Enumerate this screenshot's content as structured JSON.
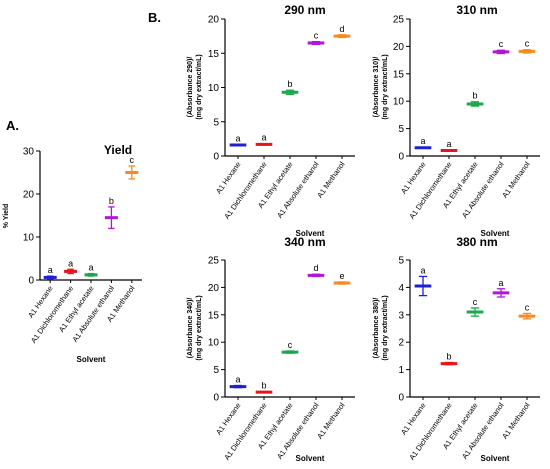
{
  "panel_labels": {
    "a": "A.",
    "b": "B."
  },
  "chart_data": [
    {
      "id": "yield",
      "type": "scatter",
      "title": "Yield",
      "ylabel": "% Yield",
      "xlabel": "Solvent",
      "ylim": [
        0,
        30
      ],
      "yticks": [
        0,
        10,
        20,
        30
      ],
      "categories": [
        "A1 Hexane",
        "A1 Dichloromethane",
        "A1 Ethyl acetate",
        "A1 Absolute ethanol",
        "A1 Methanol"
      ],
      "values": [
        0.6,
        2.0,
        1.2,
        14.5,
        25.0
      ],
      "errors": [
        0.3,
        0.5,
        0.3,
        2.5,
        1.5
      ],
      "letters": [
        "a",
        "a",
        "a",
        "b",
        "c"
      ],
      "colors": [
        "#1f1fd1",
        "#e8141c",
        "#19a84a",
        "#b016d8",
        "#f7891e"
      ]
    },
    {
      "id": "nm290",
      "type": "scatter",
      "title": "290 nm",
      "ylabel": "(Absorbance 290)/ (mg dry extract/mL)",
      "xlabel": "Solvent",
      "ylim": [
        0,
        20
      ],
      "yticks": [
        0,
        5,
        10,
        15,
        20
      ],
      "categories": [
        "A1 Hexane",
        "A1 Dichloromethane",
        "A1 Ethyl acetate",
        "A1 Absolute ethanol",
        "A1 Methanol"
      ],
      "values": [
        1.6,
        1.7,
        9.3,
        16.5,
        17.5
      ],
      "errors": [
        0.1,
        0.1,
        0.3,
        0.2,
        0.2
      ],
      "letters": [
        "a",
        "a",
        "b",
        "c",
        "d"
      ],
      "colors": [
        "#1f1fd1",
        "#e8141c",
        "#19a84a",
        "#b016d8",
        "#f7891e"
      ]
    },
    {
      "id": "nm310",
      "type": "scatter",
      "title": "310 nm",
      "ylabel": "(Absorbance 310)/ (mg dry extract/mL)",
      "xlabel": "Solvent",
      "ylim": [
        0,
        25
      ],
      "yticks": [
        0,
        5,
        10,
        15,
        20,
        25
      ],
      "categories": [
        "A1 Hexane",
        "A1 Dichloromethane",
        "A1 Ethyl acetate",
        "A1 Absolute ethanol",
        "A1 Methanol"
      ],
      "values": [
        1.5,
        1.0,
        9.5,
        19.0,
        19.1
      ],
      "errors": [
        0.1,
        0.1,
        0.4,
        0.3,
        0.3
      ],
      "letters": [
        "a",
        "a",
        "b",
        "c",
        "c"
      ],
      "colors": [
        "#1f1fd1",
        "#e8141c",
        "#19a84a",
        "#b016d8",
        "#f7891e"
      ]
    },
    {
      "id": "nm340",
      "type": "scatter",
      "title": "340 nm",
      "ylabel": "(Absorbance 340)/ (mg dry extract/mL)",
      "xlabel": "Solvent",
      "ylim": [
        0,
        25
      ],
      "yticks": [
        0,
        5,
        10,
        15,
        20,
        25
      ],
      "categories": [
        "A1 Hexane",
        "A1 Dichloromethane",
        "A1 Ethyl acetate",
        "A1 Absolute ethanol",
        "A1 Methanol"
      ],
      "values": [
        1.9,
        0.9,
        8.2,
        22.2,
        20.8
      ],
      "errors": [
        0.2,
        0.1,
        0.2,
        0.2,
        0.2
      ],
      "letters": [
        "a",
        "b",
        "c",
        "d",
        "e"
      ],
      "colors": [
        "#1f1fd1",
        "#e8141c",
        "#19a84a",
        "#b016d8",
        "#f7891e"
      ]
    },
    {
      "id": "nm380",
      "type": "scatter",
      "title": "380 nm",
      "ylabel": "(Absorbance 380)/ (mg dry extract/mL)",
      "xlabel": "Solvent",
      "ylim": [
        0,
        5
      ],
      "yticks": [
        0,
        1,
        2,
        3,
        4,
        5
      ],
      "categories": [
        "A1 Hexane",
        "A1 Dichloromethane",
        "A1 Ethyl acetate",
        "A1 Absolute ethanol",
        "A1 Methanol"
      ],
      "values": [
        4.05,
        1.22,
        3.1,
        3.8,
        2.95
      ],
      "errors": [
        0.35,
        0.04,
        0.15,
        0.15,
        0.1
      ],
      "letters": [
        "a",
        "b",
        "c",
        "a",
        "c"
      ],
      "colors": [
        "#1f1fd1",
        "#e8141c",
        "#19a84a",
        "#b016d8",
        "#f7891e"
      ]
    }
  ]
}
